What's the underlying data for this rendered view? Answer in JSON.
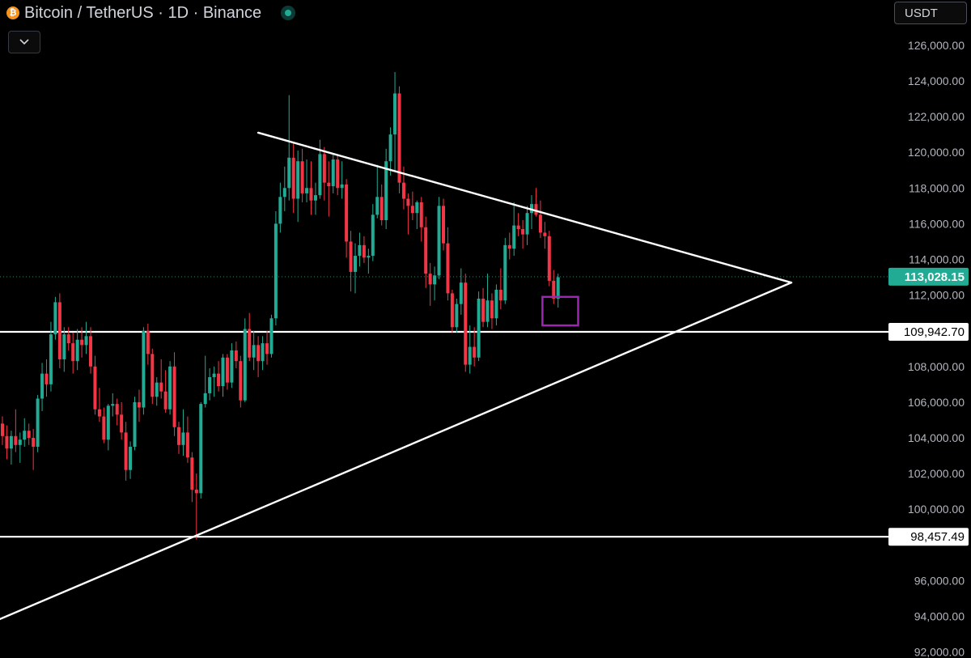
{
  "header": {
    "symbol_title": "Bitcoin / TetherUS · 1D · Binance",
    "icons": {
      "coin": "bitcoin-logo-icon",
      "status": "market-open-dot-icon",
      "collapse": "chevron-down-icon"
    },
    "currency": "USDT"
  },
  "colors": {
    "background": "#000000",
    "up": "#22ab94",
    "down": "#f23645",
    "trendline": "#ffffff",
    "highlight_box": "#9c27b0",
    "axis_text": "#b2b5be",
    "last_price_badge": "#22ab94"
  },
  "chart_data": {
    "type": "candlestick",
    "title": "Bitcoin / TetherUS · 1D · Binance",
    "y_axis": {
      "position": "right",
      "ticks": [
        "126,000.00",
        "124,000.00",
        "122,000.00",
        "120,000.00",
        "118,000.00",
        "116,000.00",
        "114,000.00",
        "112,000.00",
        "108,000.00",
        "106,000.00",
        "104,000.00",
        "102,000.00",
        "100,000.00",
        "96,000.00",
        "94,000.00",
        "92,000.00"
      ],
      "ylim": [
        92000,
        127000
      ]
    },
    "grid": false,
    "last_price": {
      "value": 113028.15,
      "label": "113,028.15"
    },
    "horizontal_levels": [
      {
        "value": 109942.7,
        "label": "109,942.70"
      },
      {
        "value": 98457.49,
        "label": "98,457.49"
      }
    ],
    "trendlines": [
      {
        "name": "descending resistance",
        "from": {
          "candle": 58,
          "price": 121100
        },
        "to": {
          "apex": true,
          "price": 112700
        }
      },
      {
        "name": "ascending support",
        "from": {
          "candle": -1,
          "price": 93800
        },
        "to": {
          "apex": true,
          "price": 112700
        }
      }
    ],
    "highlight_box": {
      "from_candle": 123,
      "to_candle": 130,
      "price_top": 111900,
      "price_bottom": 110300
    },
    "candles": [
      [
        104800,
        105200,
        103600,
        104100
      ],
      [
        104100,
        104700,
        102800,
        103400
      ],
      [
        103400,
        104400,
        102500,
        104100
      ],
      [
        104100,
        105600,
        103200,
        103600
      ],
      [
        103600,
        104300,
        102600,
        103900
      ],
      [
        103900,
        105100,
        103500,
        104400
      ],
      [
        104400,
        104800,
        103600,
        104000
      ],
      [
        104000,
        104500,
        102200,
        103500
      ],
      [
        103500,
        106400,
        103200,
        106200
      ],
      [
        106200,
        108200,
        105500,
        107600
      ],
      [
        107600,
        108400,
        106300,
        107000
      ],
      [
        107000,
        110500,
        106600,
        109800
      ],
      [
        109800,
        111900,
        109500,
        111600
      ],
      [
        111600,
        112100,
        107900,
        108400
      ],
      [
        108400,
        110200,
        107700,
        109800
      ],
      [
        109800,
        110200,
        108900,
        109300
      ],
      [
        109300,
        109900,
        107600,
        108300
      ],
      [
        108300,
        110100,
        107800,
        109500
      ],
      [
        109500,
        110200,
        108500,
        109200
      ],
      [
        109200,
        110500,
        108700,
        109700
      ],
      [
        109700,
        110200,
        107600,
        108000
      ],
      [
        108000,
        108600,
        105300,
        105600
      ],
      [
        105600,
        106800,
        104900,
        105200
      ],
      [
        105200,
        105700,
        103700,
        103900
      ],
      [
        103900,
        105900,
        103300,
        105800
      ],
      [
        105800,
        106500,
        105200,
        105900
      ],
      [
        105900,
        106200,
        104700,
        105300
      ],
      [
        105300,
        106000,
        103900,
        104300
      ],
      [
        104300,
        104900,
        101600,
        102200
      ],
      [
        102200,
        103800,
        101700,
        103500
      ],
      [
        103500,
        106300,
        103300,
        106000
      ],
      [
        106000,
        106700,
        104900,
        105700
      ],
      [
        105700,
        110200,
        105300,
        110000
      ],
      [
        110000,
        110400,
        108100,
        108700
      ],
      [
        108700,
        109000,
        105900,
        106300
      ],
      [
        106300,
        107400,
        105800,
        107100
      ],
      [
        107100,
        108400,
        106200,
        106600
      ],
      [
        106600,
        107800,
        105400,
        105600
      ],
      [
        105600,
        108300,
        105300,
        108000
      ],
      [
        108000,
        108800,
        104100,
        104600
      ],
      [
        104600,
        104900,
        103100,
        103600
      ],
      [
        103600,
        105600,
        103000,
        104300
      ],
      [
        104300,
        105200,
        102600,
        102900
      ],
      [
        102900,
        103200,
        100400,
        101100
      ],
      [
        101100,
        102000,
        98300,
        100900
      ],
      [
        100900,
        106000,
        100600,
        105900
      ],
      [
        105900,
        108600,
        105700,
        106500
      ],
      [
        106500,
        107900,
        106100,
        107400
      ],
      [
        107400,
        108000,
        106300,
        107600
      ],
      [
        107600,
        108300,
        106600,
        106900
      ],
      [
        106900,
        108700,
        106300,
        108500
      ],
      [
        108500,
        108700,
        106700,
        107100
      ],
      [
        107100,
        109300,
        106800,
        108900
      ],
      [
        108900,
        109400,
        107900,
        108300
      ],
      [
        108300,
        108600,
        105700,
        106100
      ],
      [
        106100,
        110700,
        106000,
        110100
      ],
      [
        110100,
        111000,
        108300,
        108500
      ],
      [
        108500,
        110000,
        107800,
        109200
      ],
      [
        109200,
        109700,
        107400,
        108300
      ],
      [
        108300,
        109700,
        107800,
        109300
      ],
      [
        109300,
        110000,
        108100,
        108700
      ],
      [
        108700,
        110900,
        108500,
        110700
      ],
      [
        110700,
        116700,
        110300,
        116000
      ],
      [
        116000,
        118300,
        115500,
        117500
      ],
      [
        117500,
        119200,
        116700,
        118000
      ],
      [
        118000,
        123200,
        117300,
        119700
      ],
      [
        119700,
        120500,
        116600,
        117400
      ],
      [
        117400,
        120100,
        116100,
        119500
      ],
      [
        119500,
        120200,
        117200,
        117700
      ],
      [
        117700,
        119600,
        117200,
        118000
      ],
      [
        118000,
        119500,
        116500,
        117300
      ],
      [
        117300,
        118300,
        116500,
        117600
      ],
      [
        117600,
        120700,
        117400,
        119900
      ],
      [
        119900,
        120300,
        117300,
        118300
      ],
      [
        118300,
        119500,
        116400,
        118100
      ],
      [
        118100,
        119900,
        117700,
        119600
      ],
      [
        119600,
        119800,
        117600,
        118000
      ],
      [
        118000,
        119500,
        117400,
        118200
      ],
      [
        118200,
        118500,
        114100,
        115000
      ],
      [
        115000,
        115600,
        112200,
        113300
      ],
      [
        113300,
        114900,
        112100,
        114200
      ],
      [
        114200,
        115500,
        113600,
        114800
      ],
      [
        114800,
        115300,
        113800,
        114100
      ],
      [
        114100,
        114600,
        113200,
        114200
      ],
      [
        114200,
        117100,
        113900,
        116500
      ],
      [
        116500,
        119300,
        116300,
        117500
      ],
      [
        117500,
        118200,
        115900,
        116200
      ],
      [
        116200,
        120200,
        115700,
        119500
      ],
      [
        119500,
        121400,
        118700,
        121000
      ],
      [
        121000,
        124500,
        118900,
        123300
      ],
      [
        123300,
        123700,
        117700,
        118300
      ],
      [
        118300,
        119200,
        116800,
        117400
      ],
      [
        117400,
        117700,
        115400,
        117000
      ],
      [
        117000,
        117800,
        116200,
        116600
      ],
      [
        116600,
        117300,
        115700,
        117200
      ],
      [
        117200,
        117500,
        115000,
        115800
      ],
      [
        115800,
        116400,
        112400,
        113200
      ],
      [
        113200,
        113800,
        111400,
        112600
      ],
      [
        112600,
        113600,
        111700,
        113100
      ],
      [
        113100,
        117500,
        112900,
        117000
      ],
      [
        117000,
        117400,
        114500,
        114900
      ],
      [
        114900,
        115800,
        111700,
        112100
      ],
      [
        112100,
        112300,
        109900,
        110200
      ],
      [
        110200,
        111800,
        109900,
        111500
      ],
      [
        111500,
        113500,
        110900,
        112700
      ],
      [
        112700,
        113200,
        107700,
        108100
      ],
      [
        108100,
        110300,
        107600,
        109100
      ],
      [
        109100,
        110200,
        108000,
        108500
      ],
      [
        108500,
        112200,
        108300,
        111800
      ],
      [
        111800,
        112400,
        110200,
        110500
      ],
      [
        110500,
        113200,
        110200,
        111700
      ],
      [
        111700,
        112100,
        110100,
        110700
      ],
      [
        110700,
        112600,
        110300,
        112300
      ],
      [
        112300,
        113500,
        111200,
        111700
      ],
      [
        111700,
        115200,
        111500,
        114800
      ],
      [
        114800,
        115500,
        114000,
        114600
      ],
      [
        114600,
        117200,
        114200,
        115900
      ],
      [
        115900,
        116600,
        115300,
        115700
      ],
      [
        115700,
        116200,
        114600,
        115400
      ],
      [
        115400,
        117000,
        114800,
        116600
      ],
      [
        116600,
        117600,
        115700,
        117100
      ],
      [
        117100,
        118000,
        116400,
        116500
      ],
      [
        116500,
        117300,
        115200,
        115500
      ],
      [
        115500,
        116100,
        114600,
        115300
      ],
      [
        115300,
        115600,
        112500,
        112800
      ],
      [
        112800,
        113400,
        111500,
        111800
      ],
      [
        111800,
        113200,
        111300,
        113000
      ]
    ]
  }
}
